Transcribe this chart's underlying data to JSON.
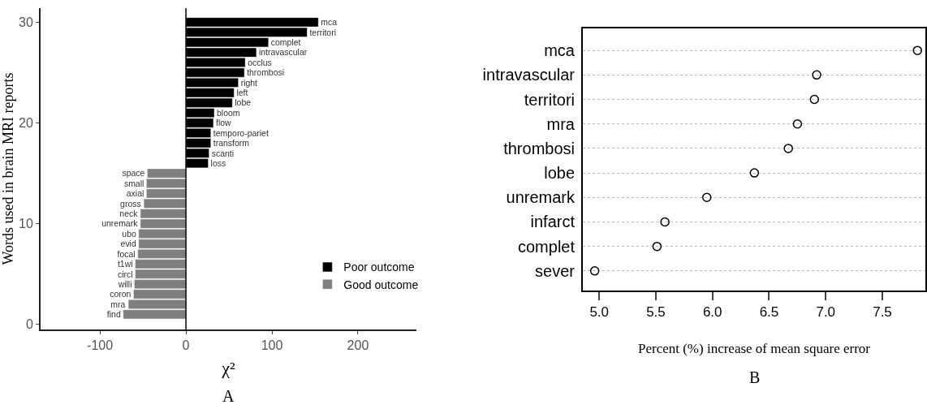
{
  "chart_data": [
    {
      "type": "bar",
      "orientation": "horizontal",
      "xlabel": "χ²",
      "ylabel": "Words used in brain MRI reports",
      "annotations": [
        "A"
      ],
      "x": [
        1,
        2,
        3,
        4,
        5,
        6,
        7,
        8,
        9,
        10,
        11,
        12,
        13,
        14,
        15,
        16,
        17,
        18,
        19,
        20,
        21,
        22,
        23,
        24,
        25,
        26,
        27,
        28,
        29,
        30
      ],
      "series": [
        {
          "name": "Poor outcome",
          "color": "#000000",
          "values": [
            null,
            null,
            null,
            null,
            null,
            null,
            null,
            null,
            null,
            null,
            null,
            null,
            null,
            null,
            null,
            26,
            27,
            29,
            29,
            32,
            33,
            54,
            56,
            61,
            68,
            69,
            82,
            96,
            141,
            154
          ],
          "value_labels": [
            null,
            null,
            null,
            null,
            null,
            null,
            null,
            null,
            null,
            null,
            null,
            null,
            null,
            null,
            null,
            "loss",
            "scanti",
            "transform",
            "temporo-pariet",
            "flow",
            "bloom",
            "lobe",
            "left",
            "right",
            "thrombosi",
            "occlus",
            "intravascular",
            "complet",
            "territori",
            "mca"
          ]
        },
        {
          "name": "Good outcome",
          "color": "#7f7f7f",
          "values": [
            -73,
            -67,
            -61,
            -60,
            -59,
            -59,
            -56,
            -55,
            -55,
            -53,
            -53,
            -49,
            -46,
            -46,
            -45,
            null,
            null,
            null,
            null,
            null,
            null,
            null,
            null,
            null,
            null,
            null,
            null,
            null,
            null,
            null
          ],
          "value_labels": [
            "find",
            "mra",
            "coron",
            "willi",
            "circl",
            "t1wi",
            "focal",
            "evid",
            "ubo",
            "unremark",
            "neck",
            "gross",
            "axial",
            "small",
            "space",
            null,
            null,
            null,
            null,
            null,
            null,
            null,
            null,
            null,
            null,
            null,
            null,
            null,
            null,
            null
          ]
        }
      ],
      "xlim": [
        -169,
        268
      ],
      "xticks": [
        -100,
        0,
        100,
        200
      ],
      "ylim": [
        -0.5,
        31.4
      ],
      "yticks": [
        0,
        10,
        20,
        30
      ],
      "ref_lines": [
        {
          "axis": "x",
          "value": 0,
          "color": "#000000"
        }
      ],
      "legend": "bottom right"
    },
    {
      "type": "scatter",
      "orientation": "horizontal",
      "xlabel": "Percent (%) increase of mean square error",
      "annotations": [
        "B"
      ],
      "categories": [
        "mca",
        "intravascular",
        "territori",
        "mra",
        "thrombosi",
        "lobe",
        "unremark",
        "infarct",
        "complet",
        "sever"
      ],
      "values": [
        7.81,
        6.92,
        6.9,
        6.75,
        6.67,
        6.37,
        5.95,
        5.58,
        5.51,
        4.96
      ],
      "color": "#000000",
      "xlim": [
        4.855,
        7.88
      ],
      "xticks": [
        {
          "value": 5,
          "label": "5.0"
        },
        5.5,
        {
          "value": 6,
          "label": "6.0"
        },
        6.5,
        {
          "value": 7,
          "label": "7.0"
        },
        7.5
      ],
      "grid": "y",
      "marker": "circle"
    }
  ]
}
